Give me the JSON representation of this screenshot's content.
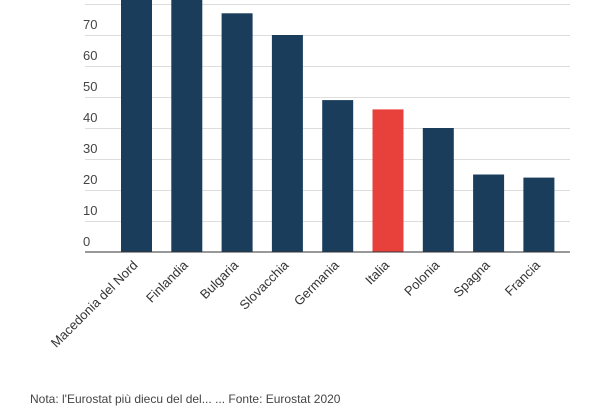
{
  "chart_data": {
    "type": "bar",
    "categories": [
      "Macedonia del Nord",
      "Finlandia",
      "Bulgaria",
      "Slovacchia",
      "Germania",
      "Italia",
      "Polonia",
      "Spagna",
      "Francia"
    ],
    "values": [
      86,
      86,
      77,
      70,
      49,
      46,
      40,
      25,
      24
    ],
    "highlight_index": 5,
    "yticks": [
      0,
      10,
      20,
      30,
      40,
      50,
      60,
      70
    ],
    "ylim": [
      0,
      82
    ],
    "grid": true,
    "colors": {
      "bar": "#1b3d5c",
      "highlight": "#e8413c"
    }
  },
  "source_note": "Nota: l'Eurostat più diecu del del... ... Fonte: Eurostat 2020"
}
